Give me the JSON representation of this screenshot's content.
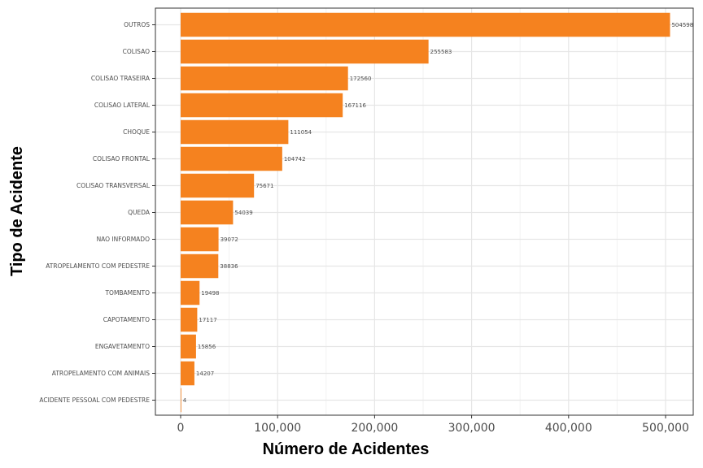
{
  "chart_data": {
    "type": "bar",
    "orientation": "horizontal",
    "xlabel": "Número de Acidentes",
    "ylabel": "Tipo de Acidente",
    "xlim": [
      0,
      520000
    ],
    "x_ticks": [
      0,
      100000,
      200000,
      300000,
      400000,
      500000
    ],
    "x_tick_labels": [
      "0",
      "100,000",
      "200,000",
      "300,000",
      "400,000",
      "500,000"
    ],
    "grid": true,
    "bar_color": "#F5821F",
    "categories": [
      "OUTROS",
      "COLISAO",
      "COLISAO TRASEIRA",
      "COLISAO LATERAL",
      "CHOQUE",
      "COLISAO FRONTAL",
      "COLISAO TRANSVERSAL",
      "QUEDA",
      "NAO INFORMADO",
      "ATROPELAMENTO COM PEDESTRE",
      "TOMBAMENTO",
      "CAPOTAMENTO",
      "ENGAVETAMENTO",
      "ATROPELAMENTO COM ANIMAIS",
      "ACIDENTE PESSOAL COM PEDESTRE"
    ],
    "values": [
      504598,
      255583,
      172560,
      167116,
      111054,
      104742,
      75671,
      54039,
      39072,
      38836,
      19498,
      17117,
      15856,
      14207,
      4
    ]
  }
}
